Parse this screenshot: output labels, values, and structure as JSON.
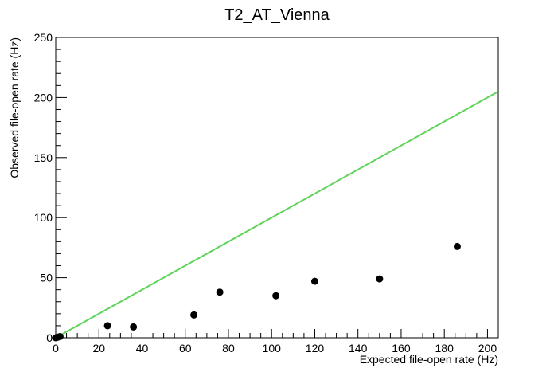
{
  "chart_data": {
    "type": "scatter",
    "title": "T2_AT_Vienna",
    "xlabel": "Expected file-open rate (Hz)",
    "ylabel": "Observed file-open rate (Hz)",
    "xlim": [
      0,
      205
    ],
    "ylim": [
      0,
      250
    ],
    "x_ticks": [
      0,
      20,
      40,
      60,
      80,
      100,
      120,
      140,
      160,
      180,
      200
    ],
    "y_ticks": [
      0,
      50,
      100,
      150,
      200,
      250
    ],
    "grid": false,
    "points": [
      {
        "x": 0,
        "y": 0
      },
      {
        "x": 1,
        "y": 0.5
      },
      {
        "x": 2,
        "y": 1
      },
      {
        "x": 24,
        "y": 10
      },
      {
        "x": 36,
        "y": 9
      },
      {
        "x": 64,
        "y": 19
      },
      {
        "x": 76,
        "y": 38
      },
      {
        "x": 102,
        "y": 35
      },
      {
        "x": 120,
        "y": 47
      },
      {
        "x": 150,
        "y": 49
      },
      {
        "x": 186,
        "y": 76
      }
    ],
    "reference_line": {
      "x": [
        0,
        205
      ],
      "y": [
        0,
        205
      ],
      "color": "#5fd35a"
    },
    "marker_color": "#000000"
  }
}
